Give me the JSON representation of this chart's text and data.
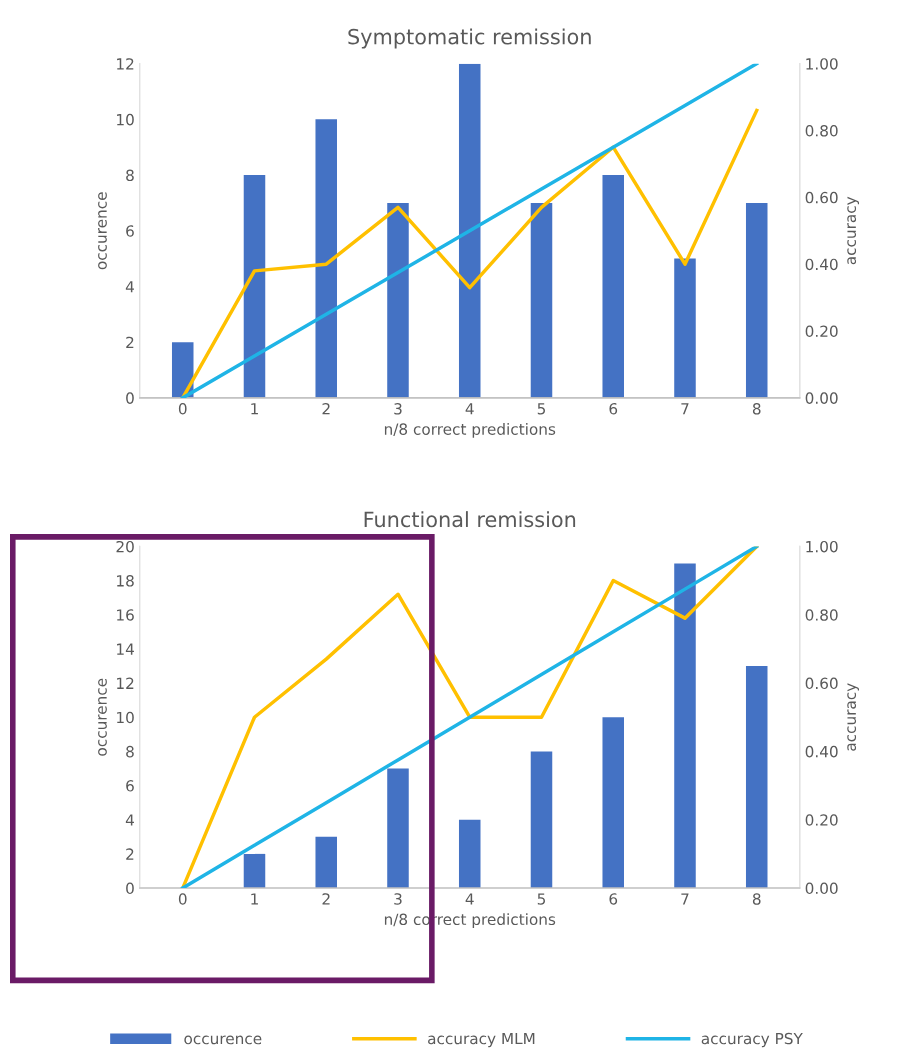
{
  "chart_data": [
    {
      "type": "bar",
      "title": "Symptomatic remission",
      "xlabel": "n/8 correct predictions",
      "ylabel": "occurence",
      "y2label": "accuracy",
      "categories": [
        "0",
        "1",
        "2",
        "3",
        "4",
        "5",
        "6",
        "7",
        "8"
      ],
      "series": [
        {
          "color": "#4472c4",
          "values": [
            2,
            8,
            10,
            7,
            12,
            7,
            8,
            5,
            7
          ]
        },
        {
          "type": "line",
          "axis": "y2",
          "color": "#ffc000",
          "values": [
            0.0,
            0.38,
            0.4,
            0.57,
            0.33,
            0.57,
            0.75,
            0.4,
            0.86
          ]
        },
        {
          "type": "line",
          "axis": "y2",
          "color": "#1fb4e6",
          "values": [
            0.0,
            0.125,
            0.25,
            0.375,
            0.5,
            0.625,
            0.75,
            0.875,
            1.0
          ]
        }
      ],
      "ylim": [
        0,
        12
      ],
      "yticks": [
        0,
        2,
        4,
        6,
        8,
        10,
        12
      ],
      "y2lim": [
        0,
        1
      ],
      "y2ticks": [
        {
          "value": 0,
          "label": "0.00"
        },
        {
          "value": 0.2,
          "label": "0.20"
        },
        {
          "value": 0.4,
          "label": "0.40"
        },
        {
          "value": 0.6,
          "label": "0.60"
        },
        {
          "value": 0.8,
          "label": "0.80"
        },
        {
          "value": 1,
          "label": "1.00"
        }
      ],
      "grid": false
    },
    {
      "type": "bar",
      "title": "Functional remission",
      "xlabel": "n/8 correct predictions",
      "ylabel": "occurence",
      "y2label": "accuracy",
      "categories": [
        "0",
        "1",
        "2",
        "3",
        "4",
        "5",
        "6",
        "7",
        "8"
      ],
      "series": [
        {
          "name": "occurence",
          "color": "#4472c4",
          "values": [
            0,
            2,
            3,
            7,
            4,
            8,
            10,
            19,
            13
          ]
        },
        {
          "name": "accuracy MLM",
          "type": "line",
          "axis": "y2",
          "color": "#ffc000",
          "values": [
            0.0,
            0.5,
            0.67,
            0.86,
            0.5,
            0.5,
            0.9,
            0.79,
            1.0
          ]
        },
        {
          "name": "accuracy PSY",
          "type": "line",
          "axis": "y2",
          "color": "#1fb4e6",
          "values": [
            0.0,
            0.125,
            0.25,
            0.375,
            0.5,
            0.625,
            0.75,
            0.875,
            1.0
          ]
        }
      ],
      "ylim": [
        0,
        20
      ],
      "yticks": [
        0,
        2,
        4,
        6,
        8,
        10,
        12,
        14,
        16,
        18,
        20
      ],
      "y2lim": [
        0,
        1
      ],
      "y2ticks": [
        {
          "value": 0,
          "label": "0.00"
        },
        {
          "value": 0.2,
          "label": "0.20"
        },
        {
          "value": 0.4,
          "label": "0.40"
        },
        {
          "value": 0.6,
          "label": "0.60"
        },
        {
          "value": 0.8,
          "label": "0.80"
        },
        {
          "value": 1,
          "label": "1.00"
        }
      ],
      "grid": false,
      "legend": "bottom"
    }
  ]
}
